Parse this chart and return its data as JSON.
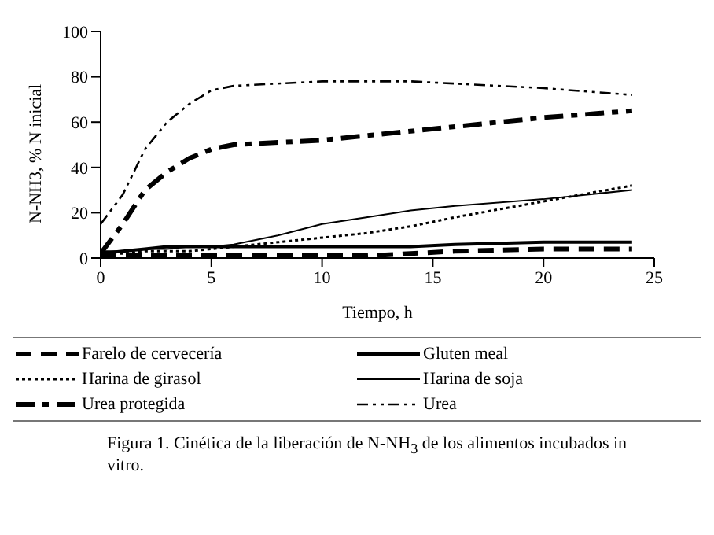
{
  "chart_data": {
    "type": "line",
    "xlabel": "Tiempo, h",
    "ylabel": "N-NH3, % N inicial",
    "x": [
      0,
      1,
      2,
      3,
      4,
      5,
      6,
      8,
      10,
      12,
      14,
      16,
      20,
      24
    ],
    "series": [
      {
        "name": "Farelo de cervecería",
        "color": "#000000",
        "line_style": "dashed",
        "values": [
          1,
          1,
          1,
          1,
          1,
          1,
          1,
          1,
          1,
          1,
          2,
          3,
          4,
          4
        ]
      },
      {
        "name": "Gluten meal",
        "color": "#000000",
        "line_style": "solid",
        "values": [
          2,
          3,
          4,
          5,
          5,
          5,
          5,
          5,
          5,
          5,
          5,
          6,
          7,
          7
        ]
      },
      {
        "name": "Harina de girasol",
        "color": "#000000",
        "line_style": "dotted",
        "values": [
          2,
          2,
          3,
          3,
          3,
          4,
          5,
          7,
          9,
          11,
          14,
          18,
          25,
          32
        ]
      },
      {
        "name": "Harina de soja",
        "color": "#000000",
        "line_style": "solid",
        "values": [
          3,
          3,
          4,
          4,
          5,
          5,
          6,
          10,
          15,
          18,
          21,
          23,
          26,
          30
        ]
      },
      {
        "name": "Urea protegida",
        "color": "#000000",
        "line_style": "dashed",
        "values": [
          2,
          15,
          30,
          38,
          44,
          48,
          50,
          51,
          52,
          54,
          56,
          58,
          62,
          65
        ]
      },
      {
        "name": "Urea",
        "color": "#000000",
        "line_style": "dashed",
        "values": [
          15,
          28,
          48,
          60,
          68,
          74,
          76,
          77,
          78,
          78,
          78,
          77,
          75,
          72
        ]
      }
    ],
    "xlim": [
      0,
      25
    ],
    "xticks": [
      0,
      5,
      10,
      15,
      20,
      25
    ],
    "ylim": [
      0,
      100
    ],
    "yticks": [
      0,
      20,
      40,
      60,
      80,
      100
    ],
    "grid": false,
    "legend": "bottom",
    "marker": "none",
    "annotations": [
      "Figura 1. Cinética de la liberación de N-NH$_{3}$ de los alimentos incubados in vitro."
    ]
  }
}
